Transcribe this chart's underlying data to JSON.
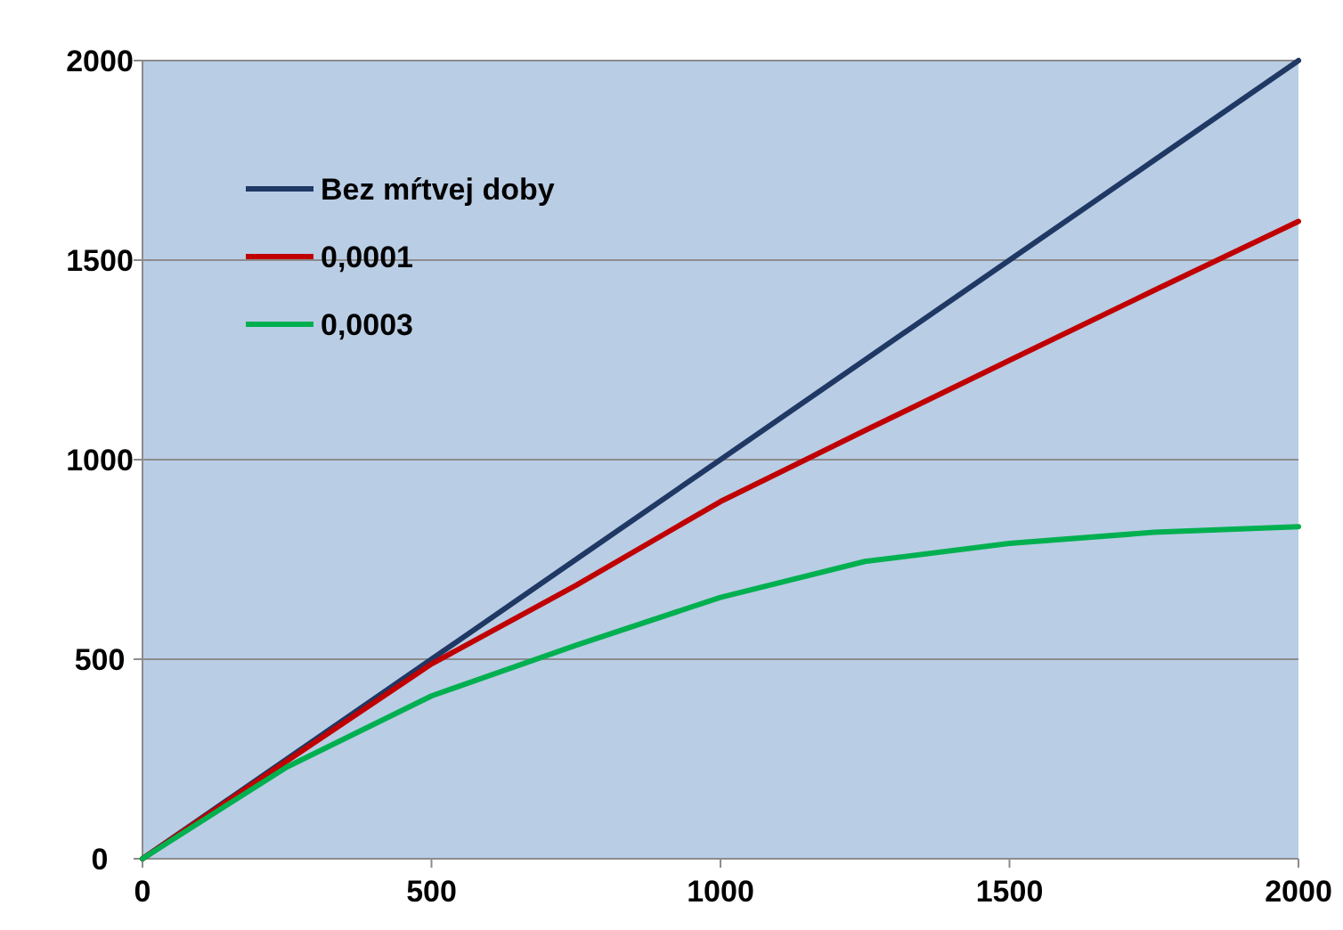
{
  "chart_data": {
    "type": "line",
    "x": [
      0,
      250,
      500,
      750,
      1000,
      1250,
      1500,
      1750,
      2000
    ],
    "series": [
      {
        "name": "Bez mŕtvej doby",
        "color": "#1f3864",
        "values": [
          0,
          250,
          500,
          750,
          1000,
          1250,
          1500,
          1750,
          2000
        ]
      },
      {
        "name": "0,0001",
        "color": "#c00000",
        "values": [
          0,
          245,
          488,
          685,
          895,
          1073,
          1249,
          1424,
          1597
        ]
      },
      {
        "name": "0,0003",
        "color": "#00b050",
        "values": [
          0,
          230,
          408,
          535,
          655,
          745,
          790,
          818,
          832
        ]
      }
    ],
    "xlim": [
      0,
      2000
    ],
    "xticks": [
      0,
      500,
      1000,
      1500,
      2000
    ],
    "ylim": [
      0,
      2000
    ],
    "yticks": [
      0,
      500,
      1000,
      1500,
      2000
    ],
    "grid": "y",
    "legend": "top left",
    "marker": "none",
    "line_style": "solid"
  }
}
